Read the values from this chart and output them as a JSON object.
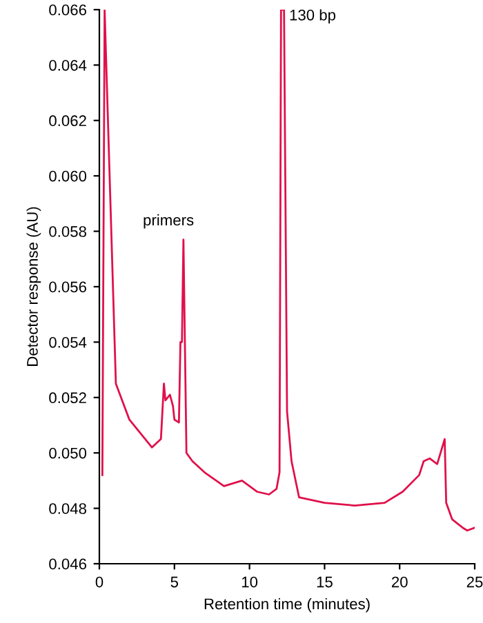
{
  "chart_data": {
    "type": "line",
    "xlabel": "Retention time (minutes)",
    "ylabel": "Detector response (AU)",
    "x": [
      0.2,
      0.35,
      1.1,
      2.0,
      3.5,
      4.1,
      4.3,
      4.4,
      4.7,
      4.9,
      5.0,
      5.3,
      5.4,
      5.5,
      5.6,
      5.8,
      6.2,
      7.0,
      8.3,
      9.5,
      10.5,
      11.3,
      11.8,
      12.0,
      12.1,
      12.3,
      12.5,
      12.8,
      13.3,
      15.0,
      17.0,
      19.0,
      20.2,
      21.3,
      21.6,
      22.0,
      22.5,
      23.0,
      23.1,
      23.5,
      24.2,
      24.5,
      25.0
    ],
    "series": [
      {
        "color": "#e0104a",
        "values": [
          0.0492,
          0.066,
          0.0525,
          0.0512,
          0.0502,
          0.0505,
          0.0525,
          0.0519,
          0.0521,
          0.0517,
          0.0512,
          0.0511,
          0.054,
          0.054,
          0.0577,
          0.05,
          0.0497,
          0.0493,
          0.0488,
          0.049,
          0.0486,
          0.0485,
          0.0487,
          0.0493,
          0.066,
          0.066,
          0.0515,
          0.0497,
          0.0484,
          0.0482,
          0.0481,
          0.0482,
          0.0486,
          0.0492,
          0.0497,
          0.0498,
          0.0496,
          0.0505,
          0.0482,
          0.0476,
          0.0473,
          0.0472,
          0.0473
        ]
      }
    ],
    "xlim": [
      0,
      25
    ],
    "xticks": [
      0,
      5,
      10,
      15,
      20,
      25
    ],
    "ylim": [
      0.046,
      0.066
    ],
    "yticks": [
      0.046,
      0.048,
      {
        "value": 0.05,
        "label": "0.050"
      },
      0.052,
      0.054,
      0.056,
      0.058,
      {
        "value": 0.06,
        "label": "0.060"
      },
      0.062,
      0.064,
      0.066
    ],
    "annotations": [
      {
        "text": "primers",
        "x": 5.6,
        "y": 0.0577
      },
      {
        "text": "130 bp",
        "x": 12.2,
        "y": 0.066
      }
    ],
    "grid": false,
    "legend": false,
    "marker": "none",
    "line_style": "solid"
  }
}
